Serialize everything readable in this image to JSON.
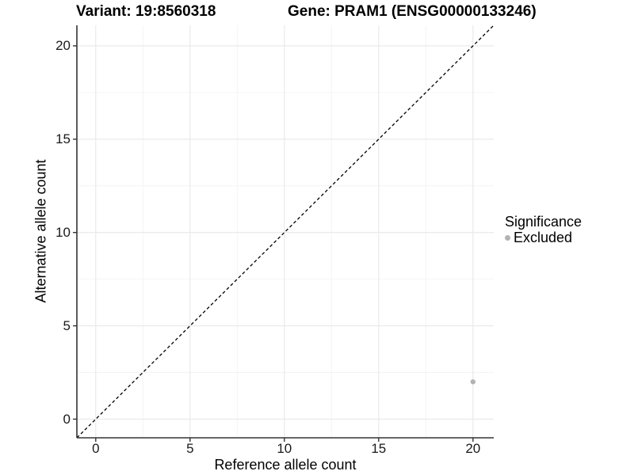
{
  "figure": {
    "title_left": "Variant: 19:8560318",
    "title_right": "Gene: PRAM1 (ENSG00000133246)"
  },
  "legend": {
    "title": "Significance",
    "items": [
      {
        "label": "Excluded",
        "color": "#b3b3b3",
        "marker": "circle-icon"
      }
    ]
  },
  "colors": {
    "background": "#ffffff",
    "axis_line": "#333333",
    "tick_mark": "#333333",
    "grid_major": "#e8e8e8",
    "grid_minor": "#f4f4f4",
    "reference_line": "#000000",
    "point": "#b3b3b3",
    "text": "#000000"
  },
  "chart_data": {
    "type": "scatter",
    "title": "Variant: 19:8560318 / Gene: PRAM1 (ENSG00000133246)",
    "xlabel": "Reference allele count",
    "ylabel": "Alternative allele count",
    "xlim": [
      -1,
      21.1
    ],
    "ylim": [
      -1,
      21.1
    ],
    "x_ticks": [
      0,
      5,
      10,
      15,
      20
    ],
    "y_ticks": [
      0,
      5,
      10,
      15,
      20
    ],
    "x_minor_ticks": [
      2.5,
      7.5,
      12.5,
      17.5
    ],
    "y_minor_ticks": [
      2.5,
      7.5,
      12.5,
      17.5
    ],
    "grid": true,
    "legend_position": "right",
    "series": [
      {
        "name": "Excluded",
        "color": "#b3b3b3",
        "points": [
          {
            "x": 20,
            "y": 2
          }
        ]
      }
    ],
    "reference_line": {
      "kind": "identity",
      "slope": 1,
      "intercept": 0,
      "style": "dashed"
    }
  }
}
